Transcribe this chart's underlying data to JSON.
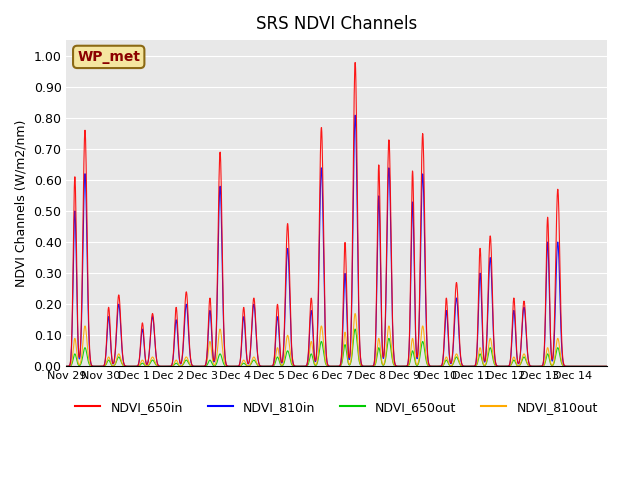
{
  "title": "SRS NDVI Channels",
  "ylabel": "NDVI Channels (W/m2/nm)",
  "annotation": "WP_met",
  "ylim": [
    0.0,
    1.05
  ],
  "yticks": [
    0.0,
    0.1,
    0.2,
    0.3,
    0.4,
    0.5,
    0.6,
    0.7,
    0.8,
    0.9,
    1.0
  ],
  "colors": {
    "NDVI_650in": "#ff0000",
    "NDVI_810in": "#0000ff",
    "NDVI_650out": "#00cc00",
    "NDVI_810out": "#ffaa00"
  },
  "background_color": "#e8e8e8",
  "xtick_labels": [
    "Nov 29",
    "Nov 30",
    "Dec 1",
    "Dec 2",
    "Dec 3",
    "Dec 4",
    "Dec 5",
    "Dec 6",
    "Dec 7",
    "Dec 8",
    "Dec 9",
    "Dec 10",
    "Dec 11",
    "Dec 12",
    "Dec 13",
    "Dec 14"
  ],
  "day_peaks": {
    "NDVI_650in": [
      0.76,
      0.23,
      0.17,
      0.24,
      0.69,
      0.22,
      0.46,
      0.77,
      0.98,
      0.73,
      0.75,
      0.27,
      0.42,
      0.21,
      0.57,
      0.0
    ],
    "NDVI_810in": [
      0.62,
      0.2,
      0.16,
      0.2,
      0.58,
      0.2,
      0.38,
      0.64,
      0.81,
      0.64,
      0.62,
      0.22,
      0.35,
      0.19,
      0.4,
      0.0
    ],
    "NDVI_650out": [
      0.06,
      0.03,
      0.02,
      0.02,
      0.04,
      0.02,
      0.05,
      0.08,
      0.12,
      0.09,
      0.08,
      0.03,
      0.06,
      0.03,
      0.06,
      0.0
    ],
    "NDVI_810out": [
      0.13,
      0.04,
      0.03,
      0.03,
      0.12,
      0.03,
      0.1,
      0.13,
      0.17,
      0.13,
      0.13,
      0.04,
      0.09,
      0.04,
      0.09,
      0.0
    ]
  },
  "day_secondary_peaks": {
    "NDVI_650in": [
      0.61,
      0.19,
      0.14,
      0.19,
      0.22,
      0.19,
      0.2,
      0.22,
      0.4,
      0.65,
      0.63,
      0.22,
      0.38,
      0.22,
      0.48,
      0.0
    ],
    "NDVI_810in": [
      0.5,
      0.16,
      0.12,
      0.15,
      0.18,
      0.16,
      0.16,
      0.18,
      0.3,
      0.55,
      0.53,
      0.18,
      0.3,
      0.18,
      0.4,
      0.0
    ],
    "NDVI_650out": [
      0.04,
      0.02,
      0.01,
      0.01,
      0.02,
      0.01,
      0.03,
      0.04,
      0.07,
      0.06,
      0.05,
      0.02,
      0.04,
      0.02,
      0.04,
      0.0
    ],
    "NDVI_810out": [
      0.09,
      0.03,
      0.02,
      0.02,
      0.08,
      0.02,
      0.06,
      0.08,
      0.11,
      0.09,
      0.09,
      0.03,
      0.06,
      0.03,
      0.06,
      0.0
    ]
  }
}
